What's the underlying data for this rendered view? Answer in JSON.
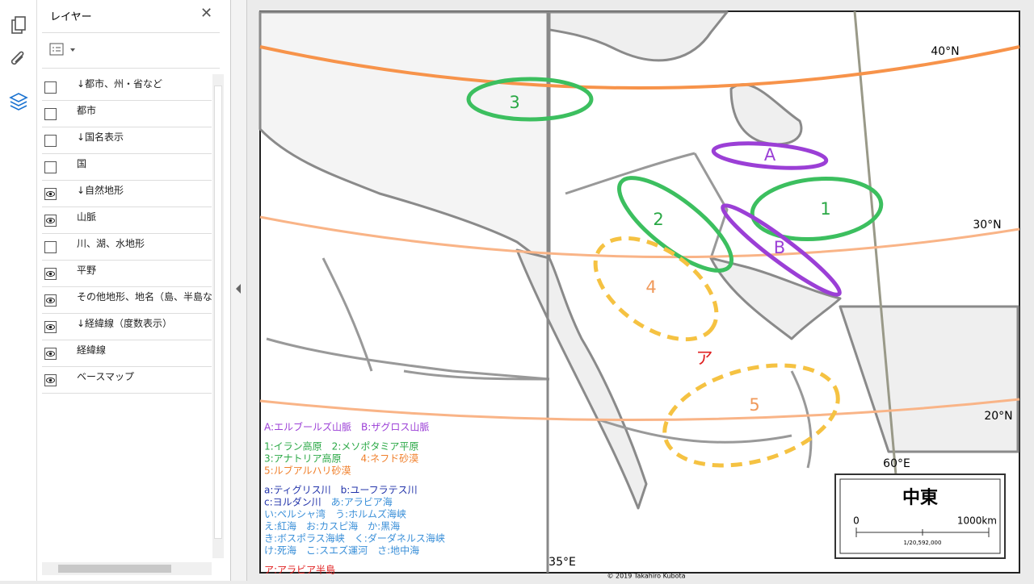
{
  "sidebar": {
    "title": "レイヤー",
    "layers": [
      {
        "name": "↓都市、州・省など",
        "visible": false
      },
      {
        "name": "都市",
        "visible": false
      },
      {
        "name": "↓国名表示",
        "visible": false
      },
      {
        "name": "国",
        "visible": false
      },
      {
        "name": "↓自然地形",
        "visible": true
      },
      {
        "name": "山脈",
        "visible": true
      },
      {
        "name": "川、湖、水地形",
        "visible": false
      },
      {
        "name": "平野",
        "visible": true
      },
      {
        "name": "その他地形、地名（島、半島な",
        "visible": true
      },
      {
        "name": "↓経緯線（度数表示）",
        "visible": true
      },
      {
        "name": "経緯線",
        "visible": true
      },
      {
        "name": "ベースマップ",
        "visible": true
      }
    ]
  },
  "map": {
    "latitudes": [
      "40°N",
      "30°N",
      "20°N"
    ],
    "longitudes": [
      "35°E",
      "60°E"
    ],
    "regions": [
      "3",
      "A",
      "1",
      "2",
      "B",
      "4",
      "5",
      "ア"
    ],
    "legend": [
      [
        [
          {
            "text": "A:エルブールズ山脈　B:ザグロス山脈",
            "color": "#9b3fd6"
          }
        ]
      ],
      [
        [
          {
            "text": "1:イラン高原　2:メソポタミア平原",
            "color": "#2aa845"
          }
        ],
        [
          {
            "text": "3:アナトリア高原　　",
            "color": "#2aa845"
          },
          {
            "text": "4:ネフド砂漠",
            "color": "#f07f2a"
          }
        ],
        [
          {
            "text": "5:ルブアルハリ砂漠",
            "color": "#f07f2a"
          }
        ]
      ],
      [
        [
          {
            "text": "a:ティグリス川　b:ユーフラテス川",
            "color": "#2233aa"
          }
        ],
        [
          {
            "text": "c:ヨルダン川　",
            "color": "#2233aa"
          },
          {
            "text": "あ:アラビア海",
            "color": "#3a8fd8"
          }
        ],
        [
          {
            "text": "い:ペルシャ湾　う:ホルムズ海峡",
            "color": "#3a8fd8"
          }
        ],
        [
          {
            "text": "え:紅海　お:カスピ海　か:黒海",
            "color": "#3a8fd8"
          }
        ],
        [
          {
            "text": "き:ボスポラス海峡　く:ダーダネルス海峡",
            "color": "#3a8fd8"
          }
        ],
        [
          {
            "text": "け:死海　こ:スエズ運河　さ:地中海",
            "color": "#3a8fd8"
          }
        ]
      ],
      [
        [
          {
            "text": "ア:アラビア半島",
            "color": "#e02020"
          }
        ]
      ]
    ],
    "title": "中東",
    "scale": {
      "start": "0",
      "end": "1000km",
      "ratio": "1/20,592,000"
    },
    "copyright": "© 2019 Takahiro Kubota"
  }
}
